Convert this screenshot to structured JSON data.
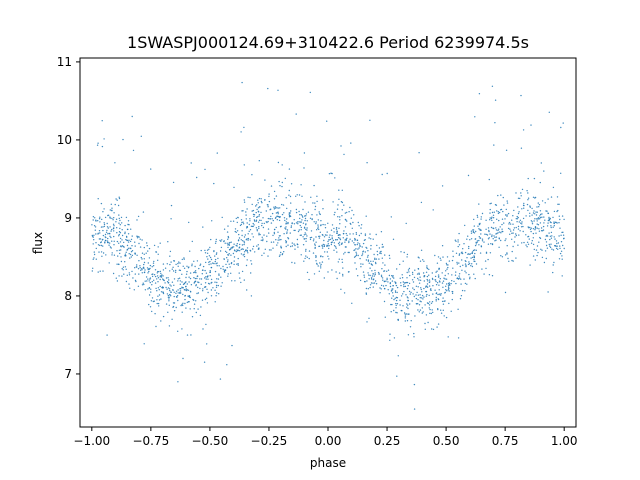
{
  "chart_data": {
    "type": "scatter",
    "title": "1SWASPJ000124.69+310422.6 Period 6239974.5s",
    "xlabel": "phase",
    "ylabel": "flux",
    "xlim": [
      -1.05,
      1.05
    ],
    "ylim": [
      6.32,
      11.05
    ],
    "x_ticks": [
      -1.0,
      -0.75,
      -0.5,
      -0.25,
      0.0,
      0.25,
      0.5,
      0.75,
      1.0
    ],
    "x_tick_labels": [
      "−1.00",
      "−0.75",
      "−0.50",
      "−0.25",
      "0.00",
      "0.25",
      "0.50",
      "0.75",
      "1.00"
    ],
    "y_ticks": [
      7,
      8,
      9,
      10,
      11
    ],
    "y_tick_labels": [
      "7",
      "8",
      "9",
      "10",
      "11"
    ],
    "grid": false,
    "point_color": "#1f77b4",
    "series": [
      {
        "x": [
          -1.0,
          -0.95,
          -0.9,
          -0.85,
          -0.8,
          -0.75,
          -0.7,
          -0.65,
          -0.6,
          -0.55,
          -0.5,
          -0.45,
          -0.4,
          -0.35,
          -0.3,
          -0.25,
          -0.2,
          -0.15,
          -0.1,
          -0.05,
          0.0,
          0.05,
          0.1,
          0.15,
          0.2,
          0.25,
          0.3,
          0.35,
          0.4,
          0.45,
          0.5,
          0.55,
          0.6,
          0.65,
          0.7,
          0.75,
          0.8,
          0.85,
          0.9,
          0.95,
          1.0
        ],
        "y": [
          8.75,
          8.8,
          8.75,
          8.6,
          8.4,
          8.25,
          8.15,
          8.1,
          8.1,
          8.15,
          8.25,
          8.4,
          8.55,
          8.75,
          8.9,
          8.95,
          8.95,
          8.9,
          8.85,
          8.8,
          8.75,
          8.75,
          8.7,
          8.55,
          8.35,
          8.2,
          8.05,
          8.0,
          8.05,
          8.1,
          8.2,
          8.35,
          8.55,
          8.75,
          8.85,
          8.9,
          8.95,
          8.95,
          8.9,
          8.8,
          8.7
        ],
        "spread": 0.22
      }
    ]
  }
}
